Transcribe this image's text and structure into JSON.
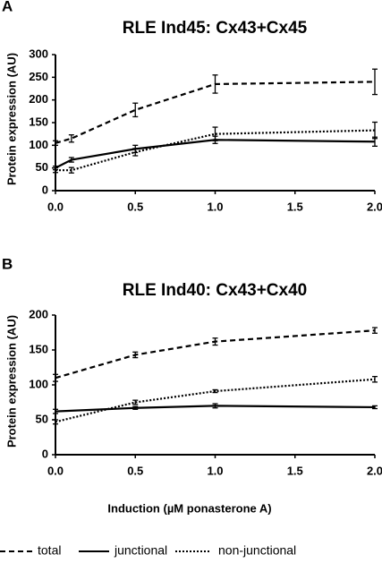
{
  "chart_data": [
    {
      "type": "line",
      "label": "A",
      "title": "RLE Ind45: Cx43+Cx45",
      "y_label": "Protein expression (AU)",
      "x": [
        0,
        0.1,
        0.5,
        1.0,
        2.0
      ],
      "xlim": [
        0,
        2.0
      ],
      "xticks": [
        {
          "value": 0,
          "label": "0.0"
        },
        {
          "value": 0.5,
          "label": "0.5"
        },
        {
          "value": 1.0,
          "label": "1.0"
        },
        {
          "value": 1.5,
          "label": "1.5"
        },
        {
          "value": 2.0,
          "label": "2.0"
        }
      ],
      "ylim": [
        0,
        300
      ],
      "yticks": [
        0,
        50,
        100,
        150,
        200,
        250,
        300
      ],
      "series": [
        {
          "name": "total",
          "color": "#000000",
          "dash": "6,4",
          "values": [
            105,
            115,
            178,
            235,
            240
          ],
          "errors": [
            5,
            8,
            15,
            20,
            28
          ]
        },
        {
          "name": "junctional",
          "color": "#000000",
          "dash": "none",
          "values": [
            50,
            68,
            92,
            112,
            108
          ],
          "errors": [
            4,
            5,
            8,
            8,
            10
          ]
        },
        {
          "name": "non-junctional",
          "color": "#000000",
          "dash": "2,2",
          "values": [
            45,
            45,
            85,
            125,
            133
          ],
          "errors": [
            5,
            6,
            8,
            15,
            18
          ]
        }
      ]
    },
    {
      "type": "line",
      "label": "B",
      "title": "RLE Ind40: Cx43+Cx40",
      "y_label": "Protein expression (AU)",
      "x_label": "Induction (µM ponasterone A)",
      "x": [
        0,
        0.5,
        1.0,
        2.0
      ],
      "xlim": [
        0,
        2.0
      ],
      "xticks": [
        {
          "value": 0,
          "label": "0.0"
        },
        {
          "value": 0.5,
          "label": "0.5"
        },
        {
          "value": 1.0,
          "label": "1.0"
        },
        {
          "value": 1.5,
          "label": "1.5"
        },
        {
          "value": 2.0,
          "label": "2.0"
        }
      ],
      "ylim": [
        0,
        200
      ],
      "yticks": [
        0,
        50,
        100,
        150,
        200
      ],
      "series": [
        {
          "color": "#000000",
          "dash": "6,4",
          "values": [
            110,
            143,
            162,
            178
          ],
          "errors": [
            5,
            4,
            5,
            4
          ]
        },
        {
          "color": "#000000",
          "dash": "none",
          "values": [
            62,
            67,
            70,
            68
          ],
          "errors": [
            3,
            2,
            3,
            2
          ]
        },
        {
          "color": "#000000",
          "dash": "2,2",
          "values": [
            47,
            75,
            91,
            108
          ],
          "errors": [
            3,
            3,
            2,
            4
          ]
        }
      ]
    }
  ]
}
